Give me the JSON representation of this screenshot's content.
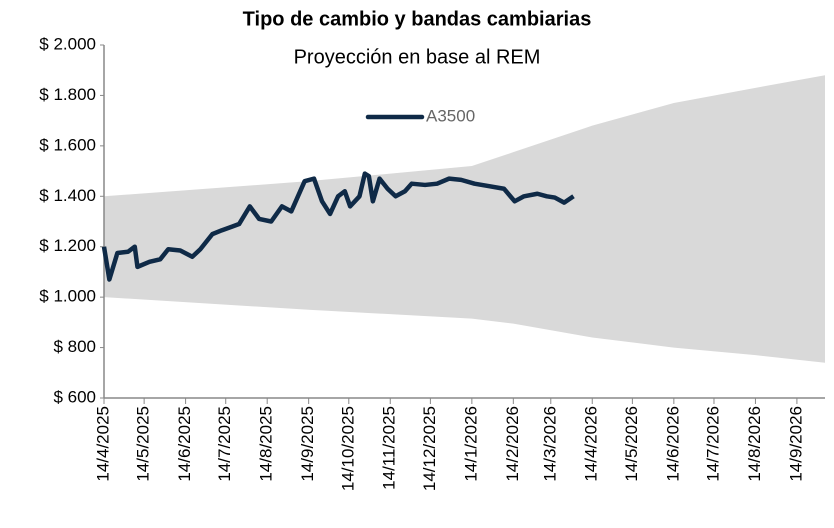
{
  "chart_data": {
    "type": "line",
    "title": "Tipo de cambio y bandas cambiarias",
    "subtitle": "Proyección en base al REM",
    "legend": "top",
    "x": [
      "14/4/2025",
      "18/4/2025",
      "24/4/2025",
      "2/5/2025",
      "7/5/2025",
      "9/5/2025",
      "18/5/2025",
      "26/5/2025",
      "1/6/2025",
      "10/6/2025",
      "19/6/2025",
      "25/6/2025",
      "4/7/2025",
      "11/7/2025",
      "19/7/2025",
      "24/7/2025",
      "1/8/2025",
      "8/8/2025",
      "17/8/2025",
      "25/8/2025",
      "1/9/2025",
      "11/9/2025",
      "18/9/2025",
      "24/9/2025",
      "30/9/2025",
      "6/10/2025",
      "11/10/2025",
      "15/10/2025",
      "22/10/2025",
      "26/10/2025",
      "29/10/2025",
      "1/11/2025",
      "6/11/2025",
      "12/11/2025",
      "18/11/2025",
      "25/11/2025",
      "30/11/2025",
      "10/12/2025",
      "19/12/2025",
      "28/12/2025",
      "6/1/2026",
      "16/1/2026",
      "27/1/2026",
      "7/2/2026",
      "15/2/2026",
      "22/2/2026",
      "4/3/2026",
      "11/3/2026",
      "17/3/2026",
      "24/3/2026",
      "31/3/2026"
    ],
    "series": [
      {
        "name": "A3500",
        "color": "#0f2a47",
        "values": [
          1200,
          1070,
          1175,
          1180,
          1200,
          1120,
          1140,
          1150,
          1190,
          1185,
          1160,
          1190,
          1250,
          1265,
          1280,
          1290,
          1360,
          1310,
          1300,
          1360,
          1340,
          1460,
          1470,
          1380,
          1330,
          1400,
          1420,
          1360,
          1400,
          1490,
          1480,
          1380,
          1470,
          1430,
          1400,
          1420,
          1450,
          1445,
          1450,
          1470,
          1465,
          1450,
          1440,
          1430,
          1380,
          1400,
          1410,
          1400,
          1395,
          1375,
          1400
        ]
      }
    ],
    "band": {
      "color": "#d9d9d9",
      "x": [
        "14/4/2025",
        "14/9/2025",
        "14/1/2026",
        "14/2/2026",
        "14/4/2026",
        "14/6/2026",
        "14/8/2026",
        "5/10/2026"
      ],
      "upper": [
        1400,
        1460,
        1520,
        1575,
        1680,
        1770,
        1830,
        1880
      ],
      "lower": [
        1000,
        950,
        915,
        895,
        840,
        800,
        770,
        740
      ]
    },
    "xlim": [
      "14/4/2025",
      "5/10/2026"
    ],
    "xticks": [
      "14/4/2025",
      "14/5/2025",
      "14/6/2025",
      "14/7/2025",
      "14/8/2025",
      "14/9/2025",
      "14/10/2025",
      "14/11/2025",
      "14/12/2025",
      "14/1/2026",
      "14/2/2026",
      "14/3/2026",
      "14/4/2026",
      "14/5/2026",
      "14/6/2026",
      "14/7/2026",
      "14/8/2026",
      "14/9/2026"
    ],
    "ylim": [
      600,
      2000
    ],
    "yticks": [
      {
        "value": 600,
        "label": "$ 600"
      },
      {
        "value": 800,
        "label": "$ 800"
      },
      {
        "value": 1000,
        "label": "$ 1.000"
      },
      {
        "value": 1200,
        "label": "$ 1.200"
      },
      {
        "value": 1400,
        "label": "$ 1.400"
      },
      {
        "value": 1600,
        "label": "$ 1.600"
      },
      {
        "value": 1800,
        "label": "$ 1.800"
      },
      {
        "value": 2000,
        "label": "$ 2.000"
      }
    ]
  }
}
